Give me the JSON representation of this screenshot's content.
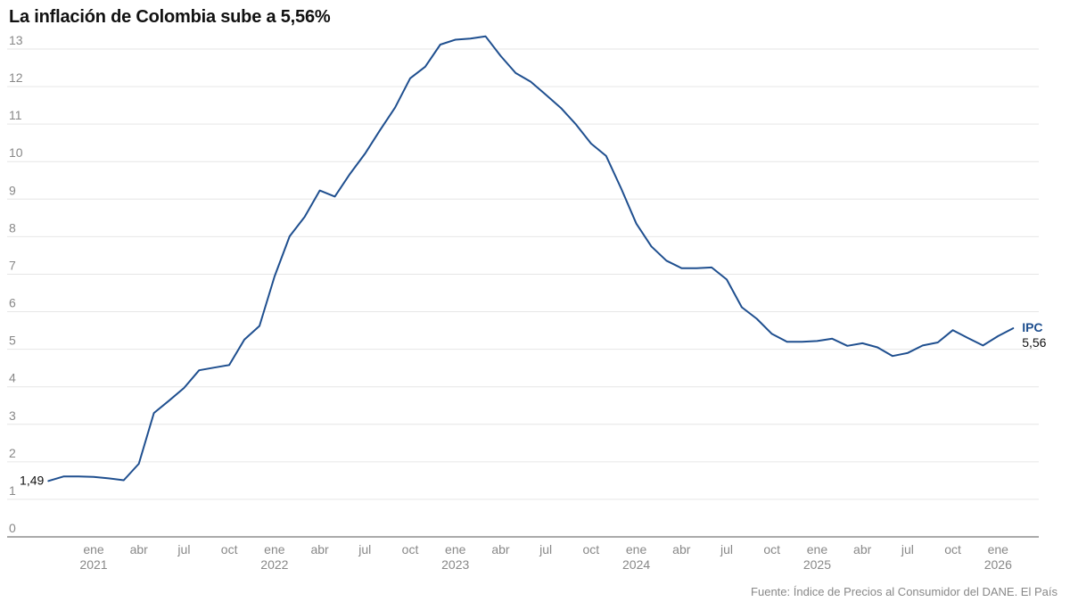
{
  "title": "La inflación de Colombia sube a 5,56%",
  "source": "Fuente: Índice de Precios al Consumidor del DANE. El País",
  "colors": {
    "line": "#1f4f8f",
    "series_label": "#1f4f8f",
    "grid": "#e6e6e6",
    "axis": "#555555",
    "tick_text": "#888888",
    "annotation_text": "#111111"
  },
  "chart_data": {
    "type": "line",
    "title": "La inflación de Colombia sube a 5,56%",
    "xlabel": "",
    "ylabel": "",
    "ylim": [
      0,
      13
    ],
    "grid": true,
    "y_ticks": [
      "0",
      "1",
      "2",
      "3",
      "4",
      "5",
      "6",
      "7",
      "8",
      "9",
      "10",
      "11",
      "12",
      "13"
    ],
    "x_ticks": [
      {
        "date": "2021-01",
        "month": "ene",
        "year": "2021"
      },
      {
        "date": "2021-04",
        "month": "abr",
        "year": ""
      },
      {
        "date": "2021-07",
        "month": "jul",
        "year": ""
      },
      {
        "date": "2021-10",
        "month": "oct",
        "year": ""
      },
      {
        "date": "2022-01",
        "month": "ene",
        "year": "2022"
      },
      {
        "date": "2022-04",
        "month": "abr",
        "year": ""
      },
      {
        "date": "2022-07",
        "month": "jul",
        "year": ""
      },
      {
        "date": "2022-10",
        "month": "oct",
        "year": ""
      },
      {
        "date": "2023-01",
        "month": "ene",
        "year": "2023"
      },
      {
        "date": "2023-04",
        "month": "abr",
        "year": ""
      },
      {
        "date": "2023-07",
        "month": "jul",
        "year": ""
      },
      {
        "date": "2023-10",
        "month": "oct",
        "year": ""
      },
      {
        "date": "2024-01",
        "month": "ene",
        "year": "2024"
      },
      {
        "date": "2024-04",
        "month": "abr",
        "year": ""
      },
      {
        "date": "2024-07",
        "month": "jul",
        "year": ""
      },
      {
        "date": "2024-10",
        "month": "oct",
        "year": ""
      },
      {
        "date": "2025-01",
        "month": "ene",
        "year": "2025"
      },
      {
        "date": "2025-04",
        "month": "abr",
        "year": ""
      },
      {
        "date": "2025-07",
        "month": "jul",
        "year": ""
      },
      {
        "date": "2025-10",
        "month": "oct",
        "year": ""
      },
      {
        "date": "2026-01",
        "month": "ene",
        "year": "2026"
      }
    ],
    "series": [
      {
        "name": "IPC",
        "x": [
          "2020-10",
          "2020-11",
          "2020-12",
          "2021-01",
          "2021-02",
          "2021-03",
          "2021-04",
          "2021-05",
          "2021-06",
          "2021-07",
          "2021-08",
          "2021-09",
          "2021-10",
          "2021-11",
          "2021-12",
          "2022-01",
          "2022-02",
          "2022-03",
          "2022-04",
          "2022-05",
          "2022-06",
          "2022-07",
          "2022-08",
          "2022-09",
          "2022-10",
          "2022-11",
          "2022-12",
          "2023-01",
          "2023-02",
          "2023-03",
          "2023-04",
          "2023-05",
          "2023-06",
          "2023-07",
          "2023-08",
          "2023-09",
          "2023-10",
          "2023-11",
          "2023-12",
          "2024-01",
          "2024-02",
          "2024-03",
          "2024-04",
          "2024-05",
          "2024-06",
          "2024-07",
          "2024-08",
          "2024-09",
          "2024-10",
          "2024-11",
          "2024-12",
          "2025-01",
          "2025-02",
          "2025-03",
          "2025-04",
          "2025-05",
          "2025-06",
          "2025-07",
          "2025-08",
          "2025-09",
          "2025-10",
          "2025-11",
          "2025-12",
          "2026-01",
          "2026-02"
        ],
        "values": [
          1.49,
          1.61,
          1.61,
          1.6,
          1.56,
          1.51,
          1.95,
          3.3,
          3.63,
          3.97,
          4.44,
          4.51,
          4.58,
          5.26,
          5.62,
          6.94,
          8.01,
          8.53,
          9.23,
          9.07,
          9.67,
          10.21,
          10.84,
          11.44,
          12.22,
          12.53,
          13.12,
          13.25,
          13.28,
          13.34,
          12.82,
          12.36,
          12.13,
          11.78,
          11.43,
          10.99,
          10.48,
          10.15,
          9.28,
          8.35,
          7.74,
          7.36,
          7.16,
          7.16,
          7.18,
          6.86,
          6.12,
          5.81,
          5.41,
          5.2,
          5.2,
          5.22,
          5.28,
          5.09,
          5.16,
          5.05,
          4.82,
          4.9,
          5.1,
          5.18,
          5.51,
          5.3,
          5.1,
          5.35,
          5.56
        ]
      }
    ],
    "annotations": {
      "start_value": "1,49",
      "end_label": "IPC",
      "end_value": "5,56"
    }
  }
}
